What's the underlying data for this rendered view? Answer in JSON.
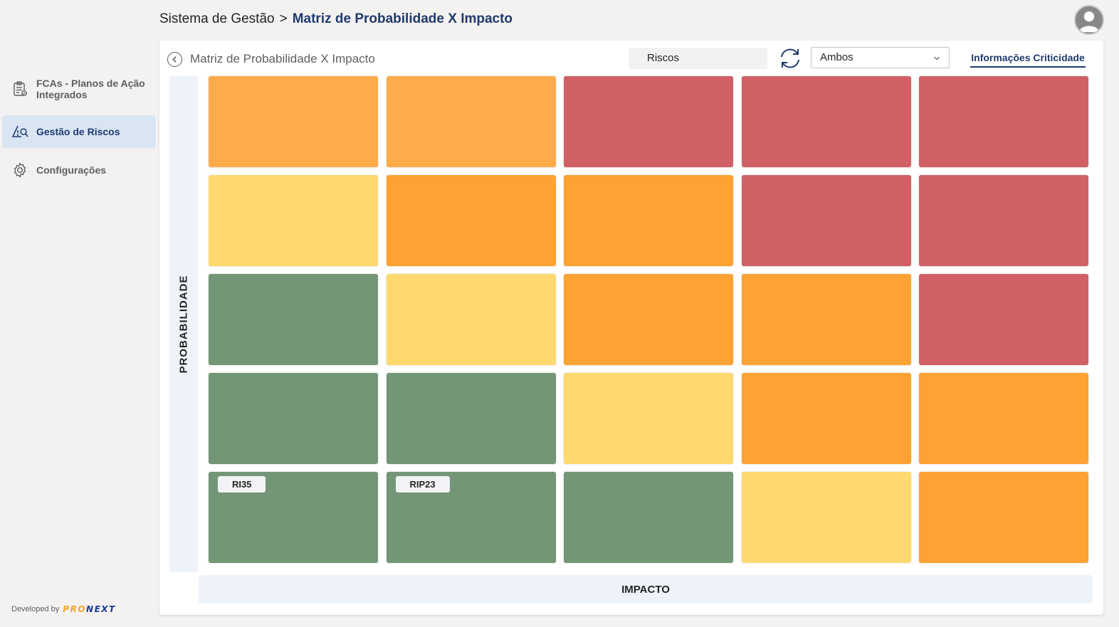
{
  "header": {
    "breadcrumb_root": "Sistema de Gestão",
    "breadcrumb_sep": ">",
    "breadcrumb_current": "Matriz de Probabilidade X Impacto"
  },
  "sidebar": {
    "items": [
      {
        "label": "FCAs - Planos de Ação Integrados",
        "icon": "clipboard-icon"
      },
      {
        "label": "Gestão de Riscos",
        "icon": "risk-search-icon",
        "active": true
      },
      {
        "label": "Configurações",
        "icon": "gear-icon"
      }
    ],
    "developed_by": "Developed by",
    "brand_part1": "PRO",
    "brand_part2": "NEXT"
  },
  "panel": {
    "title": "Matriz de Probabilidade X Impacto",
    "filter_label": "Riscos",
    "dropdown_value": "Ambos",
    "info_link": "Informações Criticidade"
  },
  "matrix": {
    "y_label": "PROBABILIDADE",
    "x_label": "IMPACTO",
    "palette": {
      "green": "#739676",
      "yellow": "#fdd970",
      "light_orange": "#fdac4c",
      "orange": "#fda233",
      "red": "#d06066"
    },
    "rows": [
      [
        "light_orange",
        "light_orange",
        "red",
        "red",
        "red"
      ],
      [
        "yellow",
        "orange",
        "orange",
        "red",
        "red"
      ],
      [
        "green",
        "yellow",
        "orange",
        "orange",
        "red"
      ],
      [
        "green",
        "green",
        "yellow",
        "orange",
        "orange"
      ],
      [
        "green",
        "green",
        "green",
        "yellow",
        "orange"
      ]
    ],
    "tags": [
      {
        "row": 4,
        "col": 0,
        "label": "RI35"
      },
      {
        "row": 4,
        "col": 1,
        "label": "RIP23"
      }
    ]
  }
}
